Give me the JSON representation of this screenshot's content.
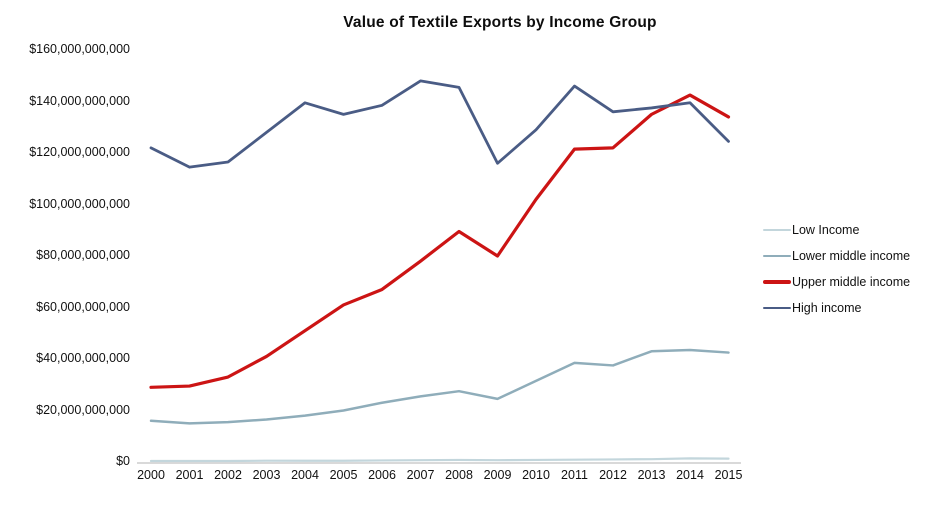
{
  "chart_data": {
    "type": "line",
    "title": "Value of Textile Exports by Income Group",
    "xlabel": "",
    "ylabel": "",
    "x": [
      "2000",
      "2001",
      "2002",
      "2003",
      "2004",
      "2005",
      "2006",
      "2007",
      "2008",
      "2009",
      "2010",
      "2011",
      "2012",
      "2013",
      "2014",
      "2015"
    ],
    "series": [
      {
        "name": "Low Income",
        "color": "#c3d6dc",
        "stroke_width": 2.2,
        "values": [
          400000000,
          400000000,
          400000000,
          500000000,
          500000000,
          500000000,
          600000000,
          700000000,
          800000000,
          700000000,
          800000000,
          900000000,
          1000000000,
          1100000000,
          1400000000,
          1300000000
        ]
      },
      {
        "name": "Lower middle income",
        "color": "#8fadba",
        "stroke_width": 2.5,
        "values": [
          16000000000,
          15000000000,
          15500000000,
          16500000000,
          18000000000,
          20000000000,
          23000000000,
          25500000000,
          27500000000,
          24500000000,
          31500000000,
          38500000000,
          37500000000,
          43000000000,
          43500000000,
          42500000000
        ]
      },
      {
        "name": "Upper middle income",
        "color": "#cc1414",
        "stroke_width": 3.2,
        "values": [
          29000000000,
          29500000000,
          33000000000,
          41000000000,
          51000000000,
          61000000000,
          67000000000,
          78000000000,
          89500000000,
          80000000000,
          102000000000,
          121500000000,
          122000000000,
          135000000000,
          142500000000,
          134000000000
        ]
      },
      {
        "name": "High income",
        "color": "#4a5c85",
        "stroke_width": 2.8,
        "values": [
          122000000000,
          114500000000,
          116500000000,
          128000000000,
          139500000000,
          135000000000,
          138500000000,
          148000000000,
          145500000000,
          116000000000,
          129000000000,
          146000000000,
          136000000000,
          137500000000,
          139500000000,
          124500000000
        ]
      }
    ],
    "ylim": [
      0,
      160000000000
    ],
    "ytick_step": 20000000000,
    "ytick_labels": [
      "$0",
      "$20,000,000,000",
      "$40,000,000,000",
      "$60,000,000,000",
      "$80,000,000,000",
      "$100,000,000,000",
      "$120,000,000,000",
      "$140,000,000,000",
      "$160,000,000,000"
    ],
    "grid": false,
    "legend_position": "right"
  }
}
